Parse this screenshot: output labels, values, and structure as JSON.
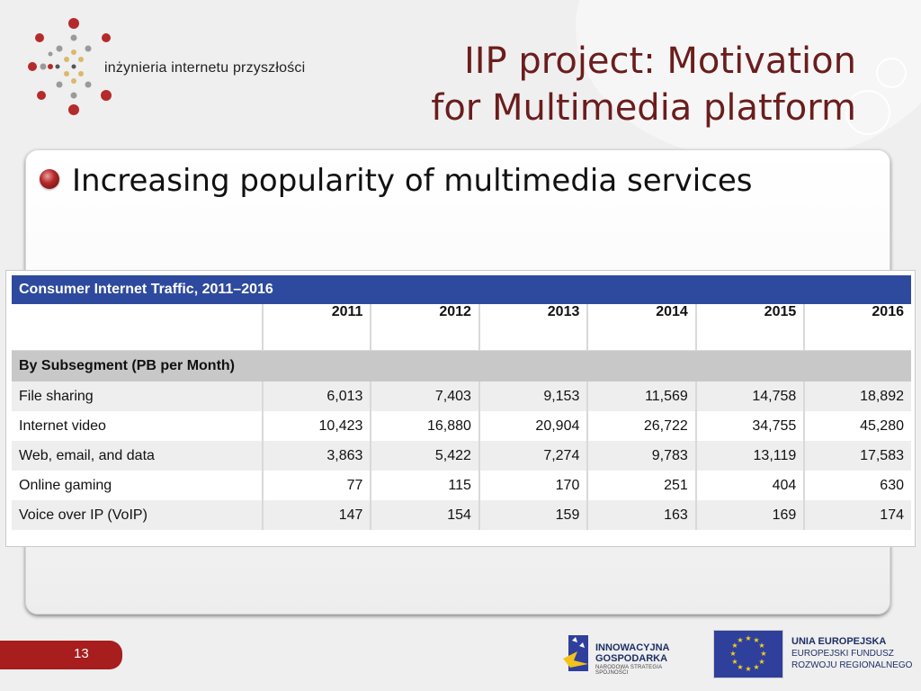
{
  "logo": {
    "text": "inżynieria internetu przyszłości"
  },
  "title": {
    "line1": "IIP project: Motivation",
    "line2": "for Multimedia platform"
  },
  "bullet": {
    "text": "Increasing popularity of multimedia services"
  },
  "table": {
    "caption": "Consumer Internet Traffic, 2011–2016",
    "years": [
      "2011",
      "2012",
      "2013",
      "2014",
      "2015",
      "2016"
    ],
    "subsegment_header": "By Subsegment (PB per Month)",
    "rows": [
      {
        "label": "File sharing",
        "values": [
          "6,013",
          "7,403",
          "9,153",
          "11,569",
          "14,758",
          "18,892"
        ]
      },
      {
        "label": "Internet video",
        "values": [
          "10,423",
          "16,880",
          "20,904",
          "26,722",
          "34,755",
          "45,280"
        ]
      },
      {
        "label": "Web, email, and data",
        "values": [
          "3,863",
          "5,422",
          "7,274",
          "9,783",
          "13,119",
          "17,583"
        ]
      },
      {
        "label": "Online gaming",
        "values": [
          "77",
          "115",
          "170",
          "251",
          "404",
          "630"
        ]
      },
      {
        "label": "Voice over IP (VoIP)",
        "values": [
          "147",
          "154",
          "159",
          "163",
          "169",
          "174"
        ]
      }
    ]
  },
  "footer": {
    "page_number": "13",
    "ig_logo": {
      "line1": "INNOWACYJNA",
      "line2": "GOSPODARKA",
      "line3": "NARODOWA STRATEGIA SPÓJNOŚCI"
    },
    "eu": {
      "line1": "UNIA EUROPEJSKA",
      "line2": "EUROPEJSKI FUNDUSZ",
      "line3": "ROZWOJU REGIONALNEGO"
    }
  },
  "colors": {
    "title": "#6b1d1d",
    "table_header": "#2e4a9e",
    "subsegment_band": "#c8c8c8",
    "page_tab": "#a81d1d"
  }
}
